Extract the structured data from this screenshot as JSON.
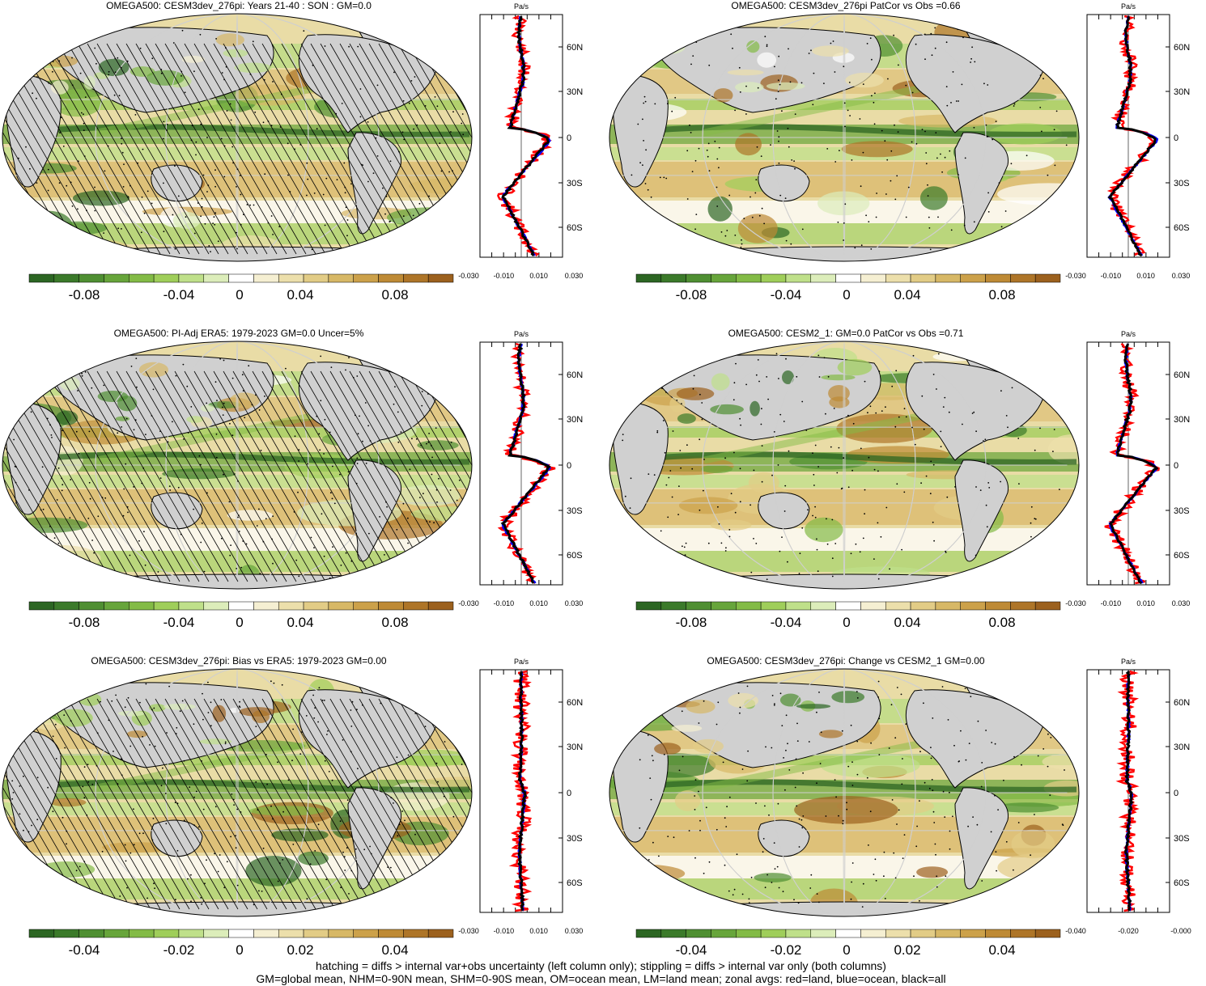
{
  "panels": [
    {
      "title": "OMEGA500: CESM3dev_276pi: Years 21-40 : SON : GM=0.0",
      "unit": "Pa/s",
      "colorbar_labels": [
        "-0.08",
        "-0.04",
        "0",
        "0.04",
        "0.08"
      ],
      "zonal_x_labels": [
        "-0.030",
        "-0.010",
        "0.010",
        "0.030"
      ],
      "lat_labels": [
        "60N",
        "30N",
        "0",
        "30S",
        "60S"
      ],
      "hatching": true
    },
    {
      "title": "OMEGA500: CESM3dev_276pi PatCor vs Obs =0.66",
      "unit": "Pa/s",
      "colorbar_labels": [
        "-0.08",
        "-0.04",
        "0",
        "0.04",
        "0.08"
      ],
      "zonal_x_labels": [
        "-0.030",
        "-0.010",
        "0.010",
        "0.030"
      ],
      "lat_labels": [
        "60N",
        "30N",
        "0",
        "30S",
        "60S"
      ],
      "hatching": false
    },
    {
      "title": "OMEGA500: PI-Adj ERA5: 1979-2023 GM=0.0 Uncer=5%",
      "unit": "Pa/s",
      "colorbar_labels": [
        "-0.08",
        "-0.04",
        "0",
        "0.04",
        "0.08"
      ],
      "zonal_x_labels": [
        "-0.030",
        "-0.010",
        "0.010",
        "0.030"
      ],
      "lat_labels": [
        "60N",
        "30N",
        "0",
        "30S",
        "60S"
      ],
      "hatching": true
    },
    {
      "title": "OMEGA500: CESM2_1: GM=0.0 PatCor vs Obs =0.71",
      "unit": "Pa/s",
      "colorbar_labels": [
        "-0.08",
        "-0.04",
        "0",
        "0.04",
        "0.08"
      ],
      "zonal_x_labels": [
        "-0.030",
        "-0.010",
        "0.010",
        "0.030"
      ],
      "lat_labels": [
        "60N",
        "30N",
        "0",
        "30S",
        "60S"
      ],
      "hatching": false
    },
    {
      "title": "OMEGA500: CESM3dev_276pi: Bias vs ERA5: 1979-2023  GM=0.00",
      "unit": "Pa/s",
      "colorbar_labels": [
        "-0.04",
        "-0.02",
        "0",
        "0.02",
        "0.04"
      ],
      "zonal_x_labels": [
        "-0.030",
        "-0.010",
        "0.010",
        "0.030"
      ],
      "lat_labels": [
        "60N",
        "30N",
        "0",
        "30S",
        "60S"
      ],
      "hatching": true
    },
    {
      "title": "OMEGA500: CESM3dev_276pi: Change vs CESM2_1 GM=0.00",
      "unit": "Pa/s",
      "colorbar_labels": [
        "-0.04",
        "-0.02",
        "0",
        "0.02",
        "0.04"
      ],
      "zonal_x_labels": [
        "-0.040",
        "-0.020",
        "-0.000"
      ],
      "lat_labels": [
        "60N",
        "30N",
        "0",
        "30S",
        "60S"
      ],
      "hatching": false
    }
  ],
  "colorbar_colors": [
    "#2c6623",
    "#3b7a2a",
    "#4f8f32",
    "#67a53b",
    "#83bb46",
    "#9fce5a",
    "#bfe08a",
    "#dcedba",
    "#ffffff",
    "#f5efd2",
    "#ecdfab",
    "#e2cc86",
    "#d7b866",
    "#cca14a",
    "#be8a35",
    "#ae7528",
    "#9c611e"
  ],
  "legend": {
    "land_color": "#d0d0d0",
    "line_colors": {
      "land": "#ff0000",
      "ocean": "#0000ff",
      "all": "#000000"
    }
  },
  "footer": {
    "line1": "hatching = diffs > internal var+obs uncertainty (left column only); stippling = diffs > internal var only (both columns)",
    "line2": "GM=global mean, NHM=0-90N mean, SHM=0-90S mean, OM=ocean mean, LM=land mean; zonal avgs: red=land, blue=ocean, black=all"
  }
}
